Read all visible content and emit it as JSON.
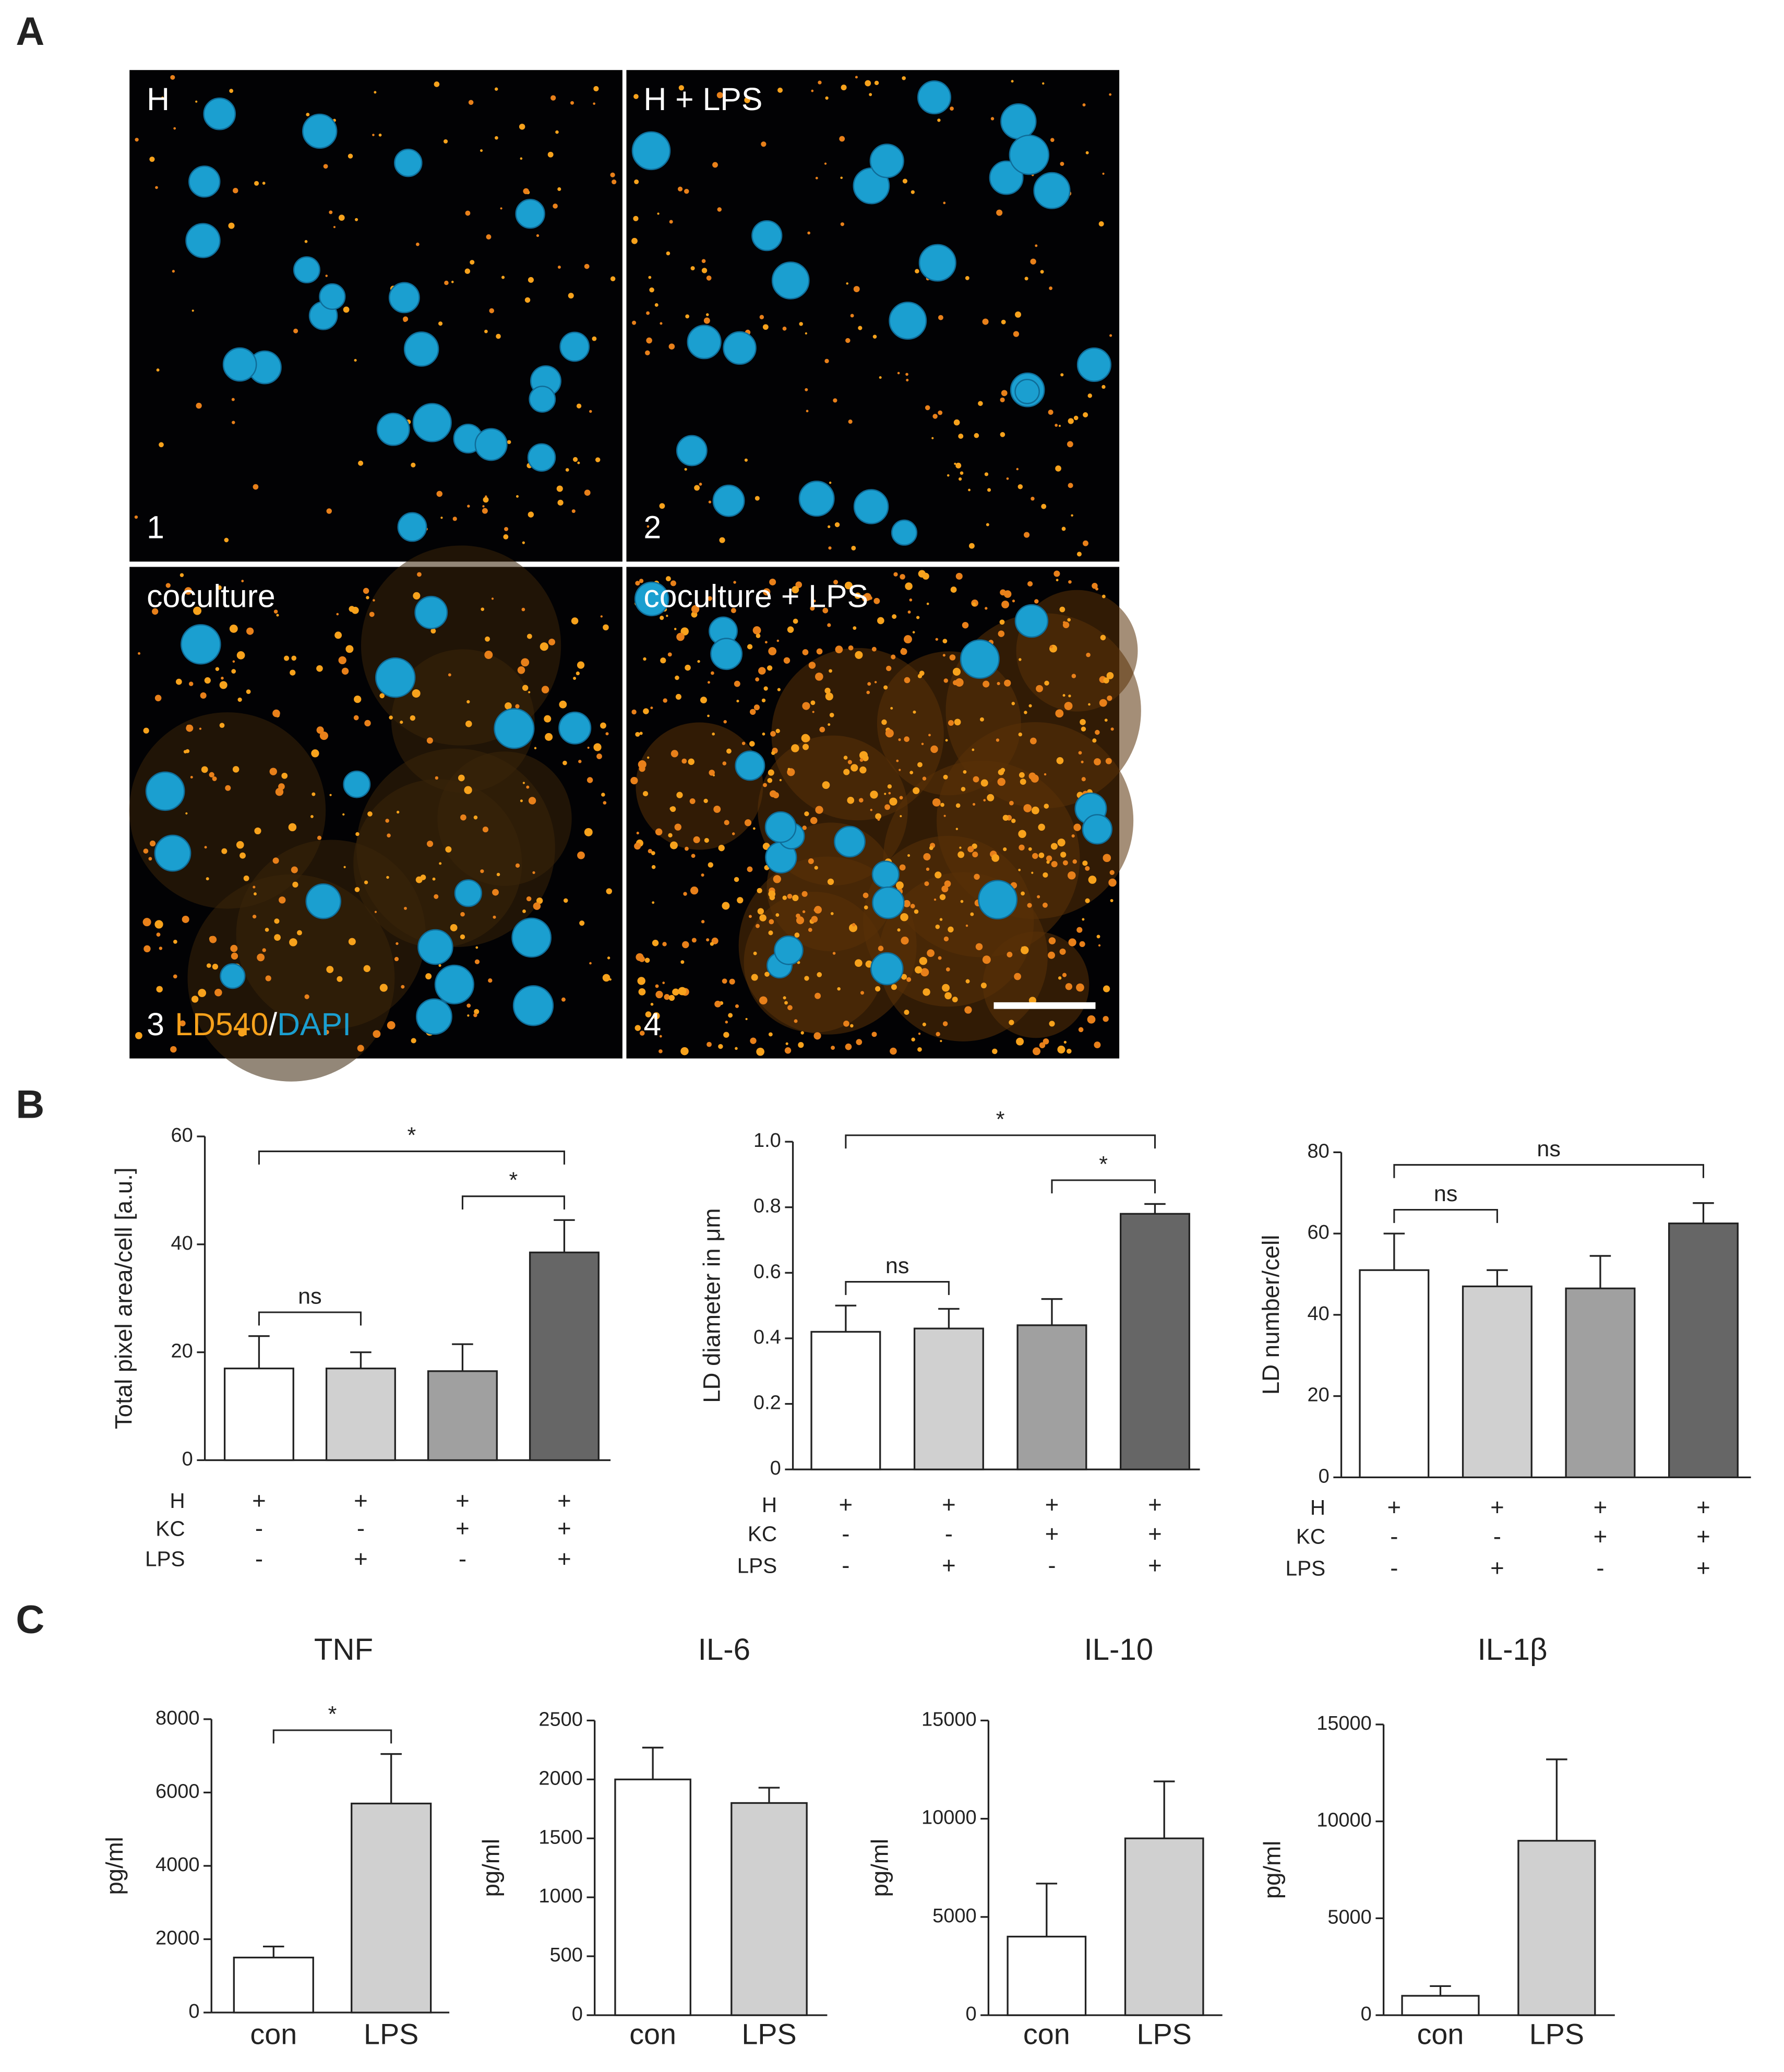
{
  "panel_a": {
    "label": "A",
    "images": [
      {
        "title": "H",
        "number": "1"
      },
      {
        "title": "H + LPS",
        "number": "2"
      },
      {
        "title": "coculture",
        "number": "3"
      },
      {
        "title": "coculture + LPS",
        "number": "4"
      }
    ],
    "stain": {
      "a": "LD540",
      "sep": "/",
      "b": "DAPI"
    }
  },
  "panel_b": {
    "label": "B"
  },
  "panel_c": {
    "label": "C"
  },
  "chart_data": [
    {
      "type": "bar",
      "ylabel": "Total pixel area/cell [a.u.]",
      "ylim": [
        0,
        60
      ],
      "yticks": [
        0,
        20,
        40,
        60
      ],
      "values": [
        17,
        17,
        16.5,
        38.5
      ],
      "errors": [
        6,
        3,
        5,
        6
      ],
      "colors": [
        "#ffffff",
        "#d0d0d0",
        "#a0a0a0",
        "#666666"
      ],
      "conditions": [
        {
          "name": "H",
          "signs": [
            "+",
            "+",
            "+",
            "+"
          ]
        },
        {
          "name": "KC",
          "signs": [
            "-",
            "-",
            "+",
            "+"
          ]
        },
        {
          "name": "LPS",
          "signs": [
            "-",
            "+",
            "-",
            "+"
          ]
        }
      ],
      "brackets": [
        {
          "from": 0,
          "to": 3,
          "label": "*"
        },
        {
          "from": 2,
          "to": 3,
          "label": "*"
        },
        {
          "from": 0,
          "to": 1,
          "label": "ns"
        }
      ]
    },
    {
      "type": "bar",
      "ylabel": "LD diameter in μm",
      "ylim": [
        0,
        1.0
      ],
      "yticks": [
        0,
        0.2,
        0.4,
        0.6,
        0.8,
        {
          "value": 1,
          "label": "1.0"
        }
      ],
      "values": [
        0.42,
        0.43,
        0.44,
        0.78
      ],
      "errors": [
        0.08,
        0.06,
        0.08,
        0.03
      ],
      "colors": [
        "#ffffff",
        "#d0d0d0",
        "#a0a0a0",
        "#666666"
      ],
      "conditions": [
        {
          "name": "H",
          "signs": [
            "+",
            "+",
            "+",
            "+"
          ]
        },
        {
          "name": "KC",
          "signs": [
            "-",
            "-",
            "+",
            "+"
          ]
        },
        {
          "name": "LPS",
          "signs": [
            "-",
            "+",
            "-",
            "+"
          ]
        }
      ],
      "brackets": [
        {
          "from": 0,
          "to": 3,
          "label": "*"
        },
        {
          "from": 2,
          "to": 3,
          "label": "*"
        },
        {
          "from": 0,
          "to": 1,
          "label": "ns"
        }
      ]
    },
    {
      "type": "bar",
      "ylabel": "LD number/cell",
      "ylim": [
        0,
        80
      ],
      "yticks": [
        0,
        20,
        40,
        60,
        80
      ],
      "values": [
        51,
        47,
        46.5,
        62.5
      ],
      "errors": [
        9,
        4,
        8,
        5
      ],
      "colors": [
        "#ffffff",
        "#d0d0d0",
        "#a0a0a0",
        "#666666"
      ],
      "conditions": [
        {
          "name": "H",
          "signs": [
            "+",
            "+",
            "+",
            "+"
          ]
        },
        {
          "name": "KC",
          "signs": [
            "-",
            "-",
            "+",
            "+"
          ]
        },
        {
          "name": "LPS",
          "signs": [
            "-",
            "+",
            "-",
            "+"
          ]
        }
      ],
      "brackets": [
        {
          "from": 0,
          "to": 3,
          "label": "ns"
        },
        {
          "from": 0,
          "to": 1,
          "label": "ns"
        }
      ]
    },
    {
      "type": "bar",
      "title": "TNF",
      "ylabel": "pg/ml",
      "ylim": [
        0,
        8000
      ],
      "yticks": [
        0,
        2000,
        4000,
        6000,
        8000
      ],
      "categories": [
        "con",
        "LPS"
      ],
      "values": [
        1500,
        5700
      ],
      "errors": [
        300,
        1350
      ],
      "colors": [
        "#ffffff",
        "#d0d0d0"
      ],
      "brackets": [
        {
          "from": 0,
          "to": 1,
          "label": "*"
        }
      ]
    },
    {
      "type": "bar",
      "title": "IL-6",
      "ylabel": "pg/ml",
      "ylim": [
        0,
        2500
      ],
      "yticks": [
        0,
        500,
        1000,
        1500,
        2000,
        2500
      ],
      "categories": [
        "con",
        "LPS"
      ],
      "values": [
        2000,
        1800
      ],
      "errors": [
        270,
        130
      ],
      "colors": [
        "#ffffff",
        "#d0d0d0"
      ]
    },
    {
      "type": "bar",
      "title": "IL-10",
      "ylabel": "pg/ml",
      "ylim": [
        0,
        15000
      ],
      "yticks": [
        0,
        5000,
        10000,
        15000
      ],
      "categories": [
        "con",
        "LPS"
      ],
      "values": [
        4000,
        9000
      ],
      "errors": [
        2700,
        2900
      ],
      "colors": [
        "#ffffff",
        "#d0d0d0"
      ]
    },
    {
      "type": "bar",
      "title": "IL-1β",
      "ylabel": "pg/ml",
      "ylim": [
        0,
        15000
      ],
      "yticks": [
        0,
        5000,
        10000,
        15000
      ],
      "categories": [
        "con",
        "LPS"
      ],
      "values": [
        1000,
        9000
      ],
      "errors": [
        500,
        4200
      ],
      "colors": [
        "#ffffff",
        "#d0d0d0"
      ]
    }
  ]
}
